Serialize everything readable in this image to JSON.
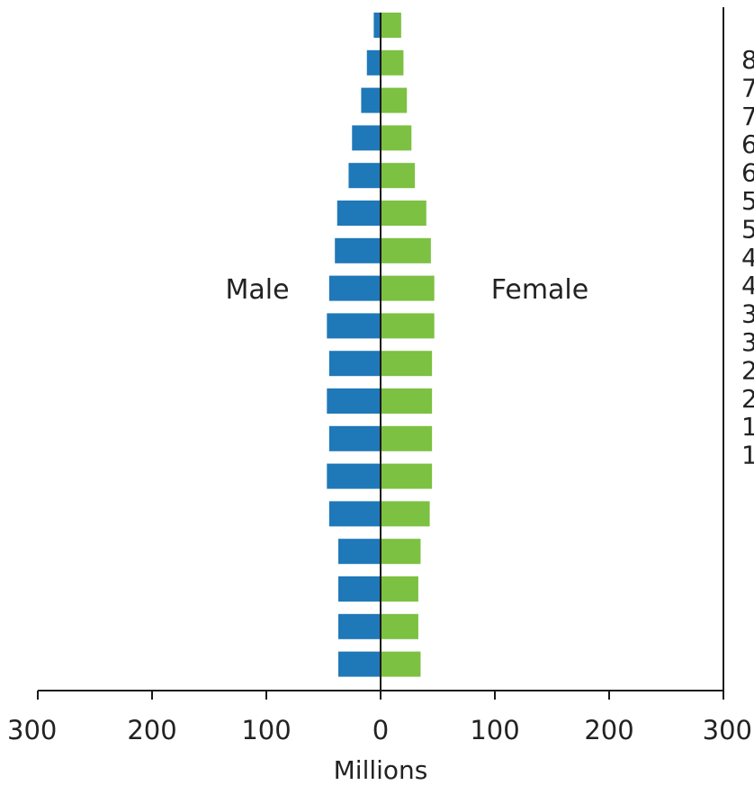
{
  "chart_data": {
    "type": "bar",
    "orientation": "horizontal",
    "xlabel": "Millions",
    "xlim": [
      -300,
      300
    ],
    "x_ticks": [
      -300,
      -200,
      -100,
      0,
      100,
      200,
      300
    ],
    "x_tick_labels": [
      "300",
      "200",
      "100",
      "0",
      "100",
      "200",
      "300"
    ],
    "side_labels": {
      "left": "Male",
      "right": "Female"
    },
    "age_labels_visible": [
      "8",
      "7",
      "7",
      "6",
      "6",
      "5",
      "5",
      "4",
      "4",
      "3",
      "3",
      "2",
      "2",
      "1",
      "1"
    ],
    "series": [
      {
        "name": "Male",
        "color": "#1f78b8",
        "values": [
          -6,
          -12,
          -17,
          -25,
          -28,
          -38,
          -40,
          -45,
          -47,
          -45,
          -47,
          -45,
          -47,
          -45,
          -37,
          -37,
          -37,
          -37
        ]
      },
      {
        "name": "Female",
        "color": "#7cc142",
        "values": [
          18,
          20,
          23,
          27,
          30,
          40,
          44,
          47,
          47,
          45,
          45,
          45,
          45,
          43,
          35,
          33,
          33,
          35
        ]
      }
    ],
    "bar_order": "top-to-bottom, oldest age group first",
    "grid": false,
    "legend": "none"
  }
}
